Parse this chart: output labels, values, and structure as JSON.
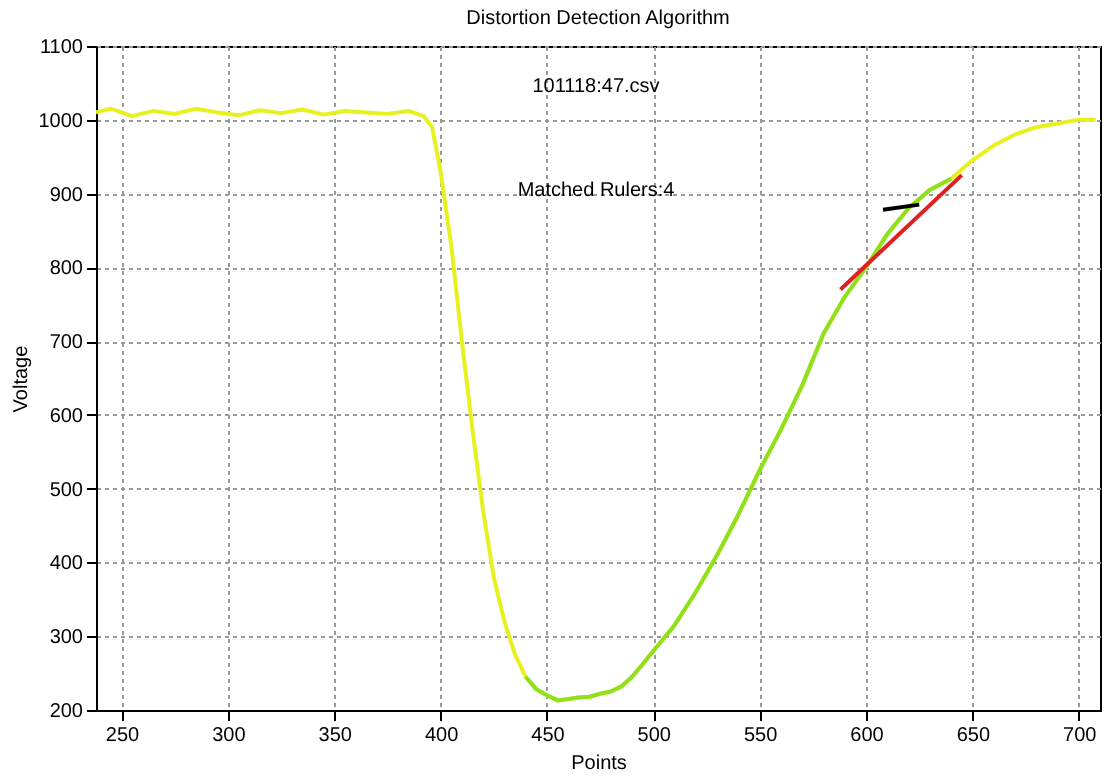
{
  "chart_data": {
    "type": "line",
    "title": "Distortion Detection Algorithm",
    "xlabel": "Points",
    "ylabel": "Voltage",
    "annotations": [
      "101118:47.csv",
      "Matched Rulers:4"
    ],
    "xlim": [
      238,
      710
    ],
    "xticks": [
      250,
      300,
      350,
      400,
      450,
      500,
      550,
      600,
      650,
      700
    ],
    "ylim": [
      200,
      1100
    ],
    "yticks": [
      200,
      300,
      400,
      500,
      600,
      700,
      800,
      900,
      1000,
      1100
    ],
    "grid": true,
    "line_style": "solid",
    "series": [
      {
        "color": "#e8f020",
        "x": [
          238,
          245,
          255,
          265,
          275,
          285,
          295,
          305,
          315,
          325,
          335,
          345,
          355,
          365,
          375,
          385,
          392,
          396,
          400,
          405,
          410,
          415,
          420,
          425,
          430,
          435,
          440,
          445,
          450,
          455,
          460,
          465,
          470,
          475,
          480,
          485,
          490,
          495,
          500,
          510,
          520,
          530,
          540,
          550,
          560,
          570,
          580,
          590,
          600,
          610,
          620,
          630,
          640,
          650,
          660,
          670,
          680,
          690,
          700,
          708
        ],
        "values": [
          1010,
          1015,
          1005,
          1012,
          1008,
          1015,
          1010,
          1006,
          1013,
          1009,
          1014,
          1007,
          1012,
          1010,
          1008,
          1012,
          1005,
          990,
          930,
          830,
          700,
          580,
          470,
          380,
          320,
          275,
          245,
          228,
          220,
          213,
          215,
          217,
          218,
          222,
          225,
          232,
          245,
          262,
          280,
          315,
          360,
          410,
          465,
          525,
          580,
          640,
          710,
          760,
          800,
          845,
          880,
          905,
          920,
          945,
          965,
          980,
          990,
          995,
          1000,
          1000
        ]
      },
      {
        "color": "#90e020",
        "x": [
          440,
          445,
          450,
          455,
          460,
          465,
          470,
          475,
          480,
          485,
          490,
          495,
          500,
          510,
          520,
          530,
          540,
          550,
          560,
          570,
          580,
          590,
          600,
          610,
          620,
          630,
          640
        ],
        "values": [
          245,
          228,
          220,
          213,
          215,
          217,
          218,
          222,
          225,
          232,
          245,
          262,
          280,
          315,
          360,
          410,
          465,
          525,
          580,
          640,
          710,
          760,
          800,
          845,
          880,
          905,
          920
        ]
      },
      {
        "color": "#e02020",
        "x": [
          588,
          645
        ],
        "values": [
          770,
          925
        ]
      },
      {
        "color": "#000000",
        "x": [
          608,
          625
        ],
        "values": [
          878,
          885
        ]
      }
    ]
  }
}
